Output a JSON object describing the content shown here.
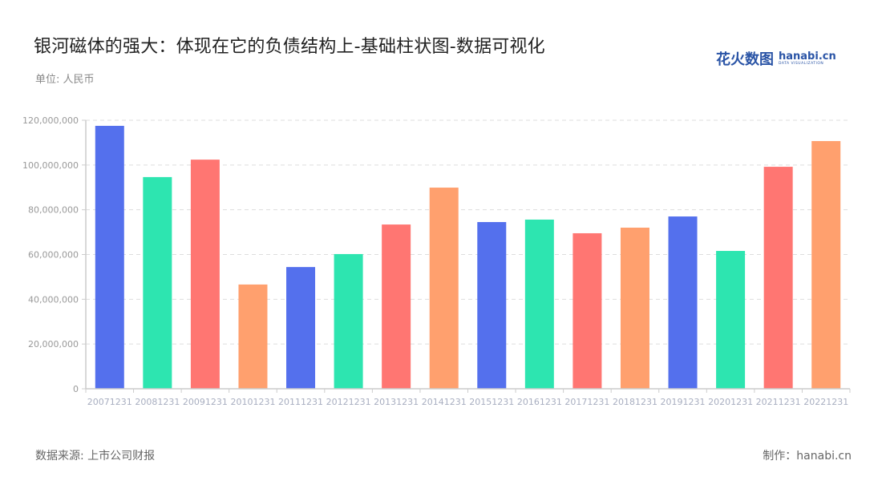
{
  "header": {
    "title": "银河磁体的强大：体现在它的负债结构上-基础柱状图-数据可视化",
    "unit": "单位: 人民币"
  },
  "logo": {
    "cn": "花火数图",
    "en": "hanabi.cn",
    "sub": "DATA VISUALIZATION"
  },
  "footer": {
    "source": "数据来源: 上市公司财报",
    "credit": "制作：hanabi.cn"
  },
  "colors": {
    "palette": [
      "#5470ed",
      "#2de5b0",
      "#ff7672",
      "#ffa06e"
    ],
    "grid": "#dddddd",
    "axis": "#cccccc"
  },
  "chart_data": {
    "type": "bar",
    "title": "银河磁体的强大：体现在它的负债结构上-基础柱状图-数据可视化",
    "xlabel": "",
    "ylabel": "单位: 人民币",
    "ylim": [
      0,
      120000000
    ],
    "yticks": [
      0,
      20000000,
      40000000,
      60000000,
      80000000,
      100000000,
      120000000
    ],
    "ytick_labels": [
      "0",
      "20,000,000",
      "40,000,000",
      "60,000,000",
      "80,000,000",
      "100,000,000",
      "120,000,000"
    ],
    "grid": true,
    "legend": null,
    "categories": [
      "20071231",
      "20081231",
      "20091231",
      "20101231",
      "20111231",
      "20121231",
      "20131231",
      "20141231",
      "20151231",
      "20161231",
      "20171231",
      "20181231",
      "20191231",
      "20201231",
      "20211231",
      "20221231"
    ],
    "values": [
      117500000,
      94600000,
      102400000,
      46600000,
      54400000,
      60200000,
      73400000,
      89900000,
      74500000,
      75600000,
      69500000,
      72000000,
      77000000,
      61600000,
      99200000,
      110700000
    ]
  }
}
